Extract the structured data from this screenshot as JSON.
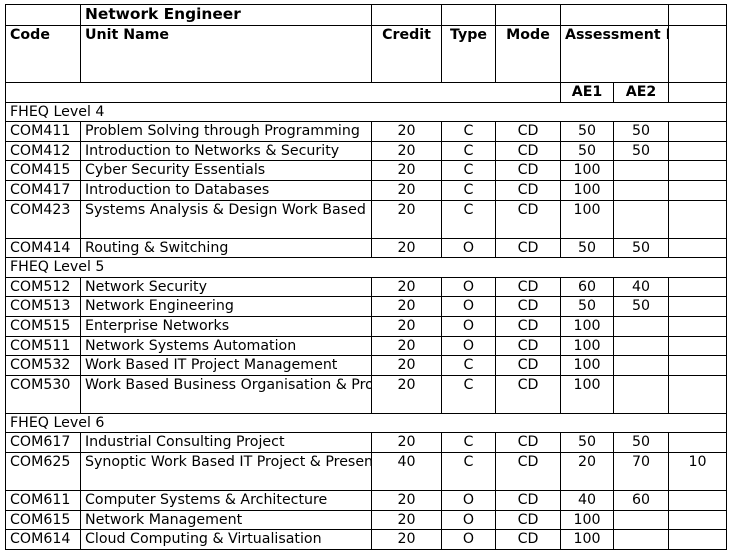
{
  "table": {
    "title": "Network Engineer",
    "headers": {
      "code": "Code",
      "unit_name": "Unit Name",
      "credit": "Credit",
      "type": "Type",
      "mode": "Mode",
      "assessment": "Assessment Element Weighting %",
      "ae1": "AE1",
      "ae2": "AE2"
    },
    "sections": [
      {
        "label": "FHEQ Level 4",
        "rows": [
          {
            "code": "COM411",
            "name": "Problem Solving through Programming",
            "credit": "20",
            "type": "C",
            "mode": "CD",
            "ae1": "50",
            "ae2": "50",
            "ae3": ""
          },
          {
            "code": "COM412",
            "name": "Introduction to Networks & Security",
            "credit": "20",
            "type": "C",
            "mode": "CD",
            "ae1": "50",
            "ae2": "50",
            "ae3": ""
          },
          {
            "code": "COM415",
            "name": "Cyber Security Essentials",
            "credit": "20",
            "type": "C",
            "mode": "CD",
            "ae1": "100",
            "ae2": "",
            "ae3": ""
          },
          {
            "code": "COM417",
            "name": "Introduction to Databases",
            "credit": "20",
            "type": "C",
            "mode": "CD",
            "ae1": "100",
            "ae2": "",
            "ae3": ""
          },
          {
            "code": "COM423",
            "name": "Systems Analysis & Design Work Based Project",
            "credit": "20",
            "type": "C",
            "mode": "CD",
            "ae1": "100",
            "ae2": "",
            "ae3": ""
          },
          {
            "code": "COM414",
            "name": "Routing & Switching",
            "credit": "20",
            "type": "O",
            "mode": "CD",
            "ae1": "50",
            "ae2": "50",
            "ae3": ""
          }
        ]
      },
      {
        "label": "FHEQ Level 5",
        "rows": [
          {
            "code": "COM512",
            "name": "Network Security",
            "credit": "20",
            "type": "O",
            "mode": "CD",
            "ae1": "60",
            "ae2": "40",
            "ae3": ""
          },
          {
            "code": "COM513",
            "name": "Network Engineering",
            "credit": "20",
            "type": "O",
            "mode": "CD",
            "ae1": "50",
            "ae2": "50",
            "ae3": ""
          },
          {
            "code": "COM515",
            "name": "Enterprise Networks",
            "credit": "20",
            "type": "O",
            "mode": "CD",
            "ae1": "100",
            "ae2": "",
            "ae3": ""
          },
          {
            "code": "COM511",
            "name": "Network Systems Automation",
            "credit": "20",
            "type": "O",
            "mode": "CD",
            "ae1": "100",
            "ae2": "",
            "ae3": ""
          },
          {
            "code": "COM532",
            "name": "Work Based IT Project Management",
            "credit": "20",
            "type": "C",
            "mode": "CD",
            "ae1": "100",
            "ae2": "",
            "ae3": ""
          },
          {
            "code": "COM530",
            "name": "Work Based Business Organisation & Project Management",
            "credit": "20",
            "type": "C",
            "mode": "CD",
            "ae1": "100",
            "ae2": "",
            "ae3": ""
          }
        ]
      },
      {
        "label": "FHEQ Level 6",
        "rows": [
          {
            "code": "COM617",
            "name": "Industrial Consulting Project",
            "credit": "20",
            "type": "C",
            "mode": "CD",
            "ae1": "50",
            "ae2": "50",
            "ae3": ""
          },
          {
            "code": "COM625",
            "name": "Synoptic Work Based IT Project & Presentation",
            "credit": "40",
            "type": "C",
            "mode": "CD",
            "ae1": "20",
            "ae2": "70",
            "ae3": "10"
          },
          {
            "code": "COM611",
            "name": "Computer Systems & Architecture",
            "credit": "20",
            "type": "O",
            "mode": "CD",
            "ae1": "40",
            "ae2": "60",
            "ae3": ""
          },
          {
            "code": "COM615",
            "name": "Network Management",
            "credit": "20",
            "type": "O",
            "mode": "CD",
            "ae1": "100",
            "ae2": "",
            "ae3": ""
          },
          {
            "code": "COM614",
            "name": "Cloud Computing & Virtualisation",
            "credit": "20",
            "type": "O",
            "mode": "CD",
            "ae1": "100",
            "ae2": "",
            "ae3": ""
          }
        ]
      }
    ]
  }
}
